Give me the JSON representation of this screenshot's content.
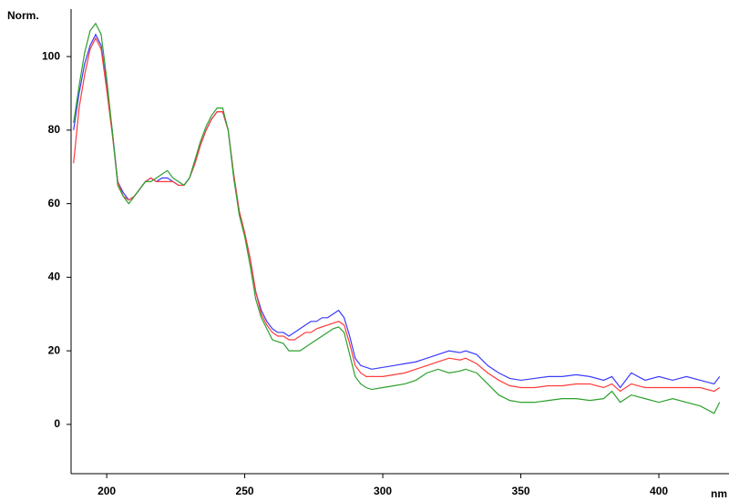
{
  "chart_data": {
    "type": "line",
    "ylabel": "Norm.",
    "xlabel": "nm",
    "x": [
      188,
      190,
      192,
      194,
      196,
      198,
      200,
      202,
      204,
      206,
      208,
      210,
      212,
      214,
      216,
      218,
      220,
      222,
      224,
      226,
      228,
      230,
      232,
      234,
      236,
      238,
      240,
      242,
      244,
      246,
      248,
      250,
      252,
      254,
      256,
      258,
      260,
      262,
      264,
      266,
      268,
      270,
      272,
      274,
      276,
      278,
      280,
      282,
      284,
      286,
      288,
      290,
      292,
      294,
      296,
      300,
      304,
      308,
      312,
      316,
      320,
      324,
      328,
      330,
      334,
      338,
      342,
      346,
      350,
      355,
      360,
      365,
      370,
      375,
      380,
      383,
      386,
      390,
      395,
      400,
      405,
      410,
      415,
      420,
      422
    ],
    "series": [
      {
        "name": "blue",
        "color": "#3b3bff",
        "values": [
          80,
          90,
          98,
          103,
          106,
          103,
          92,
          80,
          66,
          63,
          61,
          62,
          64,
          66,
          67,
          66,
          67,
          67,
          66,
          65,
          65,
          67,
          71,
          76,
          80,
          83,
          85,
          85,
          80,
          68,
          58,
          52,
          45,
          36,
          31,
          28,
          26,
          25,
          25,
          24,
          25,
          26,
          27,
          28,
          28,
          29,
          29,
          30,
          31,
          29,
          24,
          18,
          16,
          15.5,
          15,
          15.5,
          16,
          16.5,
          17,
          18,
          19,
          20,
          19.5,
          20,
          19,
          16,
          14,
          12.5,
          12,
          12.5,
          13,
          13,
          13.5,
          13,
          12,
          13,
          10,
          14,
          12,
          13,
          12,
          13,
          12,
          11,
          13
        ]
      },
      {
        "name": "red",
        "color": "#ff3b3b",
        "values": [
          71,
          86,
          95,
          102,
          105,
          102,
          91,
          79,
          66,
          62,
          61,
          62,
          64,
          66,
          67,
          66,
          66,
          66,
          66,
          65,
          65,
          67,
          71,
          76,
          80,
          83,
          85,
          85,
          80,
          68,
          58,
          52,
          45,
          36,
          30,
          27,
          25,
          24,
          24,
          23,
          23,
          24,
          25,
          25,
          26,
          26.5,
          27,
          27.5,
          28,
          27,
          22,
          16,
          14,
          13,
          13,
          13,
          13.5,
          14,
          15,
          16,
          17,
          18,
          17.5,
          18,
          16.5,
          14,
          12,
          10.5,
          10,
          10,
          10.5,
          10.5,
          11,
          11,
          10,
          11,
          9,
          11,
          10,
          10,
          10,
          10,
          10,
          9,
          10
        ]
      },
      {
        "name": "green",
        "color": "#2ca02c",
        "values": [
          82,
          92,
          101,
          107,
          109,
          106,
          94,
          80,
          65,
          62,
          60,
          62,
          64,
          66,
          66,
          67,
          68,
          69,
          67,
          66,
          65,
          67,
          72,
          77,
          81,
          84,
          86,
          86,
          80,
          67,
          57,
          51,
          43,
          34,
          29,
          26,
          23,
          22.5,
          22,
          20,
          20,
          20,
          21,
          22,
          23,
          24,
          25,
          26,
          26.5,
          25,
          19,
          13,
          11,
          10,
          9.5,
          10,
          10.5,
          11,
          12,
          14,
          15,
          14,
          14.5,
          15,
          14,
          11,
          8,
          6.5,
          6,
          6,
          6.5,
          7,
          7,
          6.5,
          7,
          9,
          6,
          8,
          7,
          6,
          7,
          6,
          5,
          3,
          6
        ]
      }
    ],
    "xlim": [
      187.1,
      425.4
    ],
    "ylim": [
      -13.4,
      112.9
    ],
    "xticks": [
      200,
      250,
      300,
      350,
      400
    ],
    "yticks": [
      0,
      20,
      40,
      60,
      80,
      100
    ]
  }
}
